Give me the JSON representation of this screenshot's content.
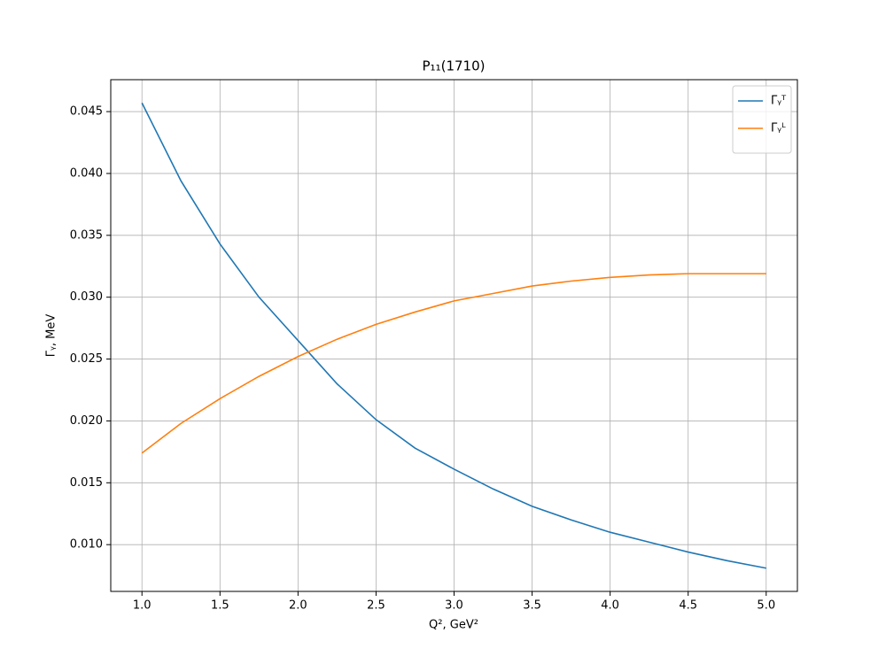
{
  "chart_data": {
    "type": "line",
    "title": "P₁₁(1710)",
    "xlabel": "Q², GeV²",
    "ylabel": "Γᵧ, MeV",
    "x": [
      1.0,
      1.25,
      1.5,
      1.75,
      2.0,
      2.25,
      2.5,
      2.75,
      3.0,
      3.25,
      3.5,
      3.75,
      4.0,
      4.25,
      4.5,
      4.75,
      5.0
    ],
    "series": [
      {
        "name": "Γᵧᵀ",
        "color": "#1f77b4",
        "values": [
          0.0457,
          0.0394,
          0.0343,
          0.03,
          0.0265,
          0.023,
          0.0201,
          0.0178,
          0.0161,
          0.0145,
          0.0131,
          0.012,
          0.011,
          0.0102,
          0.0094,
          0.0087,
          0.0081
        ]
      },
      {
        "name": "Γᵧᴸ",
        "color": "#ff7f0e",
        "values": [
          0.0174,
          0.0198,
          0.0218,
          0.0236,
          0.0252,
          0.0266,
          0.0278,
          0.0288,
          0.0297,
          0.0303,
          0.0309,
          0.0313,
          0.0316,
          0.0318,
          0.0319,
          0.0319,
          0.0319
        ]
      }
    ],
    "xlim": [
      0.8,
      5.2
    ],
    "xticks": [
      {
        "value": 1.0,
        "label": "1.0"
      },
      {
        "value": 1.5,
        "label": "1.5"
      },
      {
        "value": 2.0,
        "label": "2.0"
      },
      {
        "value": 2.5,
        "label": "2.5"
      },
      {
        "value": 3.0,
        "label": "3.0"
      },
      {
        "value": 3.5,
        "label": "3.5"
      },
      {
        "value": 4.0,
        "label": "4.0"
      },
      {
        "value": 4.5,
        "label": "4.5"
      },
      {
        "value": 5.0,
        "label": "5.0"
      }
    ],
    "ylim": [
      0.00622,
      0.04758
    ],
    "yticks": [
      {
        "value": 0.01,
        "label": "0.010"
      },
      {
        "value": 0.015,
        "label": "0.015"
      },
      {
        "value": 0.02,
        "label": "0.020"
      },
      {
        "value": 0.025,
        "label": "0.025"
      },
      {
        "value": 0.03,
        "label": "0.030"
      },
      {
        "value": 0.035,
        "label": "0.035"
      },
      {
        "value": 0.04,
        "label": "0.040"
      },
      {
        "value": 0.045,
        "label": "0.045"
      }
    ],
    "grid": true,
    "legend": "upper right"
  }
}
